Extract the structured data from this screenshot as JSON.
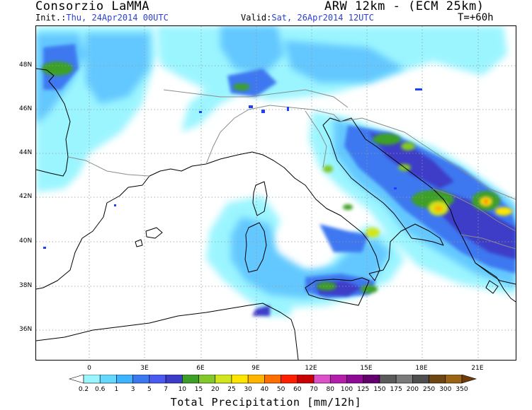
{
  "header": {
    "title_left": "Consorzio LaMMA",
    "title_right": "ARW 12km - (ECM 25km)",
    "init_label": "Init.:",
    "init_value": "Thu, 24Apr2014 00UTC",
    "valid_label": "Valid:",
    "valid_value": "Sat, 26Apr2014 12UTC",
    "lead_time": "T=+60h"
  },
  "map": {
    "lat_labels": [
      "48N",
      "46N",
      "44N",
      "42N",
      "40N",
      "38N",
      "36N"
    ],
    "lon_labels": [
      "0",
      "3E",
      "6E",
      "9E",
      "12E",
      "15E",
      "18E",
      "21E"
    ],
    "colors": {
      "land_outline": "#000000",
      "border": "#8c8c8c",
      "lakes": "#1f3fff"
    }
  },
  "colorbar": {
    "title": "Total Precipitation [mm/12h]",
    "levels": [
      "0.2",
      "0.6",
      "1",
      "3",
      "5",
      "7",
      "10",
      "15",
      "20",
      "25",
      "30",
      "40",
      "50",
      "60",
      "70",
      "80",
      "100",
      "125",
      "150",
      "175",
      "200",
      "250",
      "300",
      "350"
    ],
    "colors": [
      "#ffffff",
      "#9bf5ff",
      "#64d8ff",
      "#3cb4ff",
      "#3c78f0",
      "#4b5af0",
      "#3c3cc8",
      "#3ca028",
      "#82c828",
      "#d2e61e",
      "#ffe600",
      "#ffb400",
      "#ff6e00",
      "#ff1e00",
      "#c80000",
      "#dc50c8",
      "#b41eaa",
      "#8c0a96",
      "#64006e",
      "#5a5a5a",
      "#7a7a7a",
      "#4e4e4e",
      "#6e4614",
      "#9b6414",
      "#6e3c0a"
    ]
  }
}
